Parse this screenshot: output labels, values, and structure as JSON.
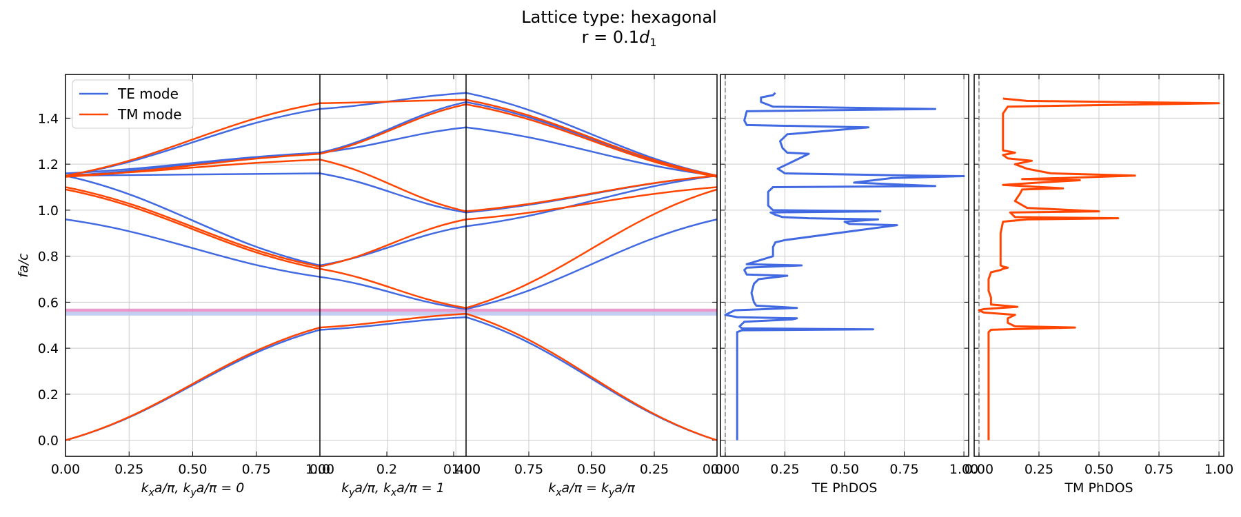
{
  "figure": {
    "title_line1": "Lattice type: hexagonal",
    "title_line2": "r = 0.1",
    "title_line2_sym": "d",
    "title_line2_sub": "1"
  },
  "colors": {
    "te": "#4169E1",
    "tm": "#FF4500",
    "gap_tm": "#E58AC6",
    "gap_te": "#B7C6F2"
  },
  "chart_data": [
    {
      "id": "band-structure",
      "type": "line",
      "ylabel": "fa/c",
      "ylim": [
        -0.07,
        1.59
      ],
      "yticks": [
        0.0,
        0.2,
        0.4,
        0.6,
        0.8,
        1.0,
        1.2,
        1.4
      ],
      "legend": {
        "position": "top-left",
        "entries": [
          "TE mode",
          "TM mode"
        ]
      },
      "segments": [
        {
          "xlabel_parts": [
            "k",
            "x",
            "a/π, ",
            "k",
            "y",
            "a/π = 0"
          ],
          "tick_labels": [
            "0.00",
            "0.25",
            "0.50",
            "0.75",
            "1.00"
          ]
        },
        {
          "xlabel_parts": [
            "k",
            "y",
            "a/π, ",
            "k",
            "x",
            "a/π = 1"
          ],
          "tick_labels": [
            "0.0",
            "0.2",
            "0.4",
            "1.00"
          ]
        },
        {
          "xlabel_parts": [
            "k",
            "x",
            "a/π = ",
            "k",
            "y",
            "a/π"
          ],
          "tick_labels": [
            "1.00",
            "0.75",
            "0.50",
            "0.25",
            "0.00"
          ]
        }
      ],
      "gaps": [
        {
          "mode": "TM",
          "range": [
            0.558,
            0.572
          ]
        },
        {
          "mode": "TE",
          "range": [
            0.542,
            0.558
          ]
        }
      ],
      "series": [
        {
          "name": "TE mode",
          "bands": [
            [
              0.0,
              0.48,
              0.535,
              0.0
            ],
            [
              0.96,
              0.71,
              0.57,
              0.96
            ],
            [
              1.15,
              0.76,
              0.93,
              1.15
            ],
            [
              1.15,
              1.16,
              0.99,
              1.15
            ],
            [
              1.16,
              1.25,
              1.36,
              1.15
            ],
            [
              1.15,
              1.44,
              1.51,
              1.15
            ],
            [
              1.15,
              1.25,
              1.47,
              1.15
            ]
          ]
        },
        {
          "name": "TM mode",
          "bands": [
            [
              0.0,
              0.49,
              0.55,
              0.0
            ],
            [
              1.09,
              0.745,
              0.575,
              1.09
            ],
            [
              1.1,
              0.755,
              0.96,
              1.1
            ],
            [
              1.15,
              1.22,
              0.995,
              1.15
            ],
            [
              1.145,
              1.245,
              1.46,
              1.145
            ],
            [
              1.15,
              1.465,
              1.48,
              1.15
            ]
          ]
        }
      ]
    },
    {
      "id": "te-phdos",
      "type": "line",
      "xlabel": "TE PhDOS",
      "xlim": [
        -0.02,
        1.02
      ],
      "tick_labels": [
        "0.00",
        "0.25",
        "0.50",
        "0.75",
        "1.00"
      ],
      "dashed_line_x": 0.0,
      "points": [
        [
          0.05,
          0.0
        ],
        [
          0.05,
          0.47
        ],
        [
          0.07,
          0.478
        ],
        [
          0.62,
          0.482
        ],
        [
          0.07,
          0.486
        ],
        [
          0.06,
          0.495
        ],
        [
          0.08,
          0.515
        ],
        [
          0.28,
          0.525
        ],
        [
          0.3,
          0.53
        ],
        [
          0.05,
          0.535
        ],
        [
          0.0,
          0.545
        ],
        [
          0.04,
          0.565
        ],
        [
          0.3,
          0.575
        ],
        [
          0.13,
          0.585
        ],
        [
          0.12,
          0.6
        ],
        [
          0.11,
          0.64
        ],
        [
          0.12,
          0.68
        ],
        [
          0.14,
          0.7
        ],
        [
          0.26,
          0.715
        ],
        [
          0.09,
          0.72
        ],
        [
          0.08,
          0.74
        ],
        [
          0.09,
          0.75
        ],
        [
          0.32,
          0.76
        ],
        [
          0.09,
          0.765
        ],
        [
          0.2,
          0.8
        ],
        [
          0.2,
          0.84
        ],
        [
          0.21,
          0.86
        ],
        [
          0.25,
          0.87
        ],
        [
          0.72,
          0.935
        ],
        [
          0.52,
          0.94
        ],
        [
          0.5,
          0.95
        ],
        [
          0.64,
          0.96
        ],
        [
          0.35,
          0.965
        ],
        [
          0.24,
          0.97
        ],
        [
          0.21,
          0.98
        ],
        [
          0.19,
          0.99
        ],
        [
          0.65,
          0.995
        ],
        [
          0.2,
          1.0
        ],
        [
          0.18,
          1.02
        ],
        [
          0.18,
          1.08
        ],
        [
          0.2,
          1.1
        ],
        [
          0.88,
          1.105
        ],
        [
          0.54,
          1.12
        ],
        [
          0.7,
          1.14
        ],
        [
          1.0,
          1.148
        ],
        [
          0.8,
          1.15
        ],
        [
          0.25,
          1.16
        ],
        [
          0.22,
          1.18
        ],
        [
          0.26,
          1.2
        ],
        [
          0.3,
          1.22
        ],
        [
          0.35,
          1.245
        ],
        [
          0.26,
          1.25
        ],
        [
          0.24,
          1.27
        ],
        [
          0.23,
          1.3
        ],
        [
          0.26,
          1.33
        ],
        [
          0.6,
          1.36
        ],
        [
          0.09,
          1.37
        ],
        [
          0.08,
          1.39
        ],
        [
          0.09,
          1.43
        ],
        [
          0.88,
          1.44
        ],
        [
          0.2,
          1.45
        ],
        [
          0.15,
          1.47
        ],
        [
          0.15,
          1.49
        ],
        [
          0.2,
          1.5
        ],
        [
          0.21,
          1.51
        ]
      ]
    },
    {
      "id": "tm-phdos",
      "type": "line",
      "xlabel": "TM PhDOS",
      "xlim": [
        -0.02,
        1.02
      ],
      "tick_labels": [
        "0.00",
        "0.25",
        "0.50",
        "0.75",
        "1.00"
      ],
      "dashed_line_x": 0.0,
      "points": [
        [
          0.04,
          0.0
        ],
        [
          0.04,
          0.47
        ],
        [
          0.05,
          0.48
        ],
        [
          0.4,
          0.49
        ],
        [
          0.15,
          0.495
        ],
        [
          0.12,
          0.51
        ],
        [
          0.12,
          0.53
        ],
        [
          0.15,
          0.545
        ],
        [
          0.02,
          0.555
        ],
        [
          0.0,
          0.565
        ],
        [
          0.02,
          0.57
        ],
        [
          0.16,
          0.58
        ],
        [
          0.05,
          0.59
        ],
        [
          0.05,
          0.62
        ],
        [
          0.04,
          0.65
        ],
        [
          0.04,
          0.7
        ],
        [
          0.05,
          0.73
        ],
        [
          0.09,
          0.74
        ],
        [
          0.1,
          0.745
        ],
        [
          0.12,
          0.75
        ],
        [
          0.1,
          0.755
        ],
        [
          0.09,
          0.76
        ],
        [
          0.09,
          0.8
        ],
        [
          0.09,
          0.85
        ],
        [
          0.09,
          0.9
        ],
        [
          0.1,
          0.95
        ],
        [
          0.2,
          0.96
        ],
        [
          0.58,
          0.965
        ],
        [
          0.15,
          0.97
        ],
        [
          0.13,
          0.99
        ],
        [
          0.5,
          0.995
        ],
        [
          0.2,
          1.01
        ],
        [
          0.15,
          1.04
        ],
        [
          0.17,
          1.07
        ],
        [
          0.18,
          1.09
        ],
        [
          0.35,
          1.095
        ],
        [
          0.1,
          1.11
        ],
        [
          0.25,
          1.12
        ],
        [
          0.42,
          1.13
        ],
        [
          0.18,
          1.135
        ],
        [
          0.35,
          1.14
        ],
        [
          0.65,
          1.15
        ],
        [
          0.3,
          1.16
        ],
        [
          0.2,
          1.18
        ],
        [
          0.15,
          1.2
        ],
        [
          0.22,
          1.215
        ],
        [
          0.12,
          1.225
        ],
        [
          0.1,
          1.24
        ],
        [
          0.15,
          1.25
        ],
        [
          0.1,
          1.26
        ],
        [
          0.1,
          1.3
        ],
        [
          0.1,
          1.36
        ],
        [
          0.1,
          1.42
        ],
        [
          0.12,
          1.45
        ],
        [
          1.0,
          1.465
        ],
        [
          0.2,
          1.475
        ],
        [
          0.1,
          1.485
        ]
      ]
    }
  ]
}
